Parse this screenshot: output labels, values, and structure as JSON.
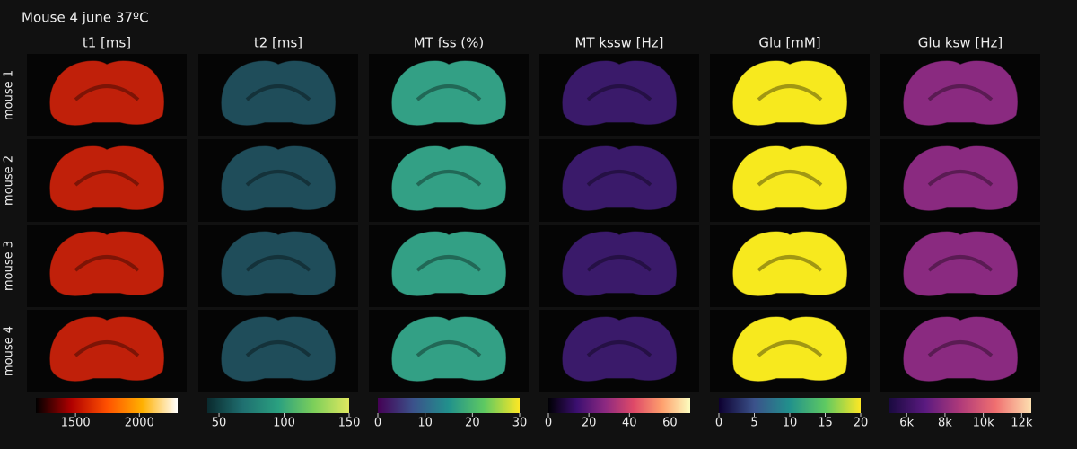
{
  "title": "Mouse 4 june 37ºC",
  "row_labels": [
    "mouse 1",
    "mouse 2",
    "mouse 3",
    "mouse 4"
  ],
  "columns": [
    {
      "title": "t1 [ms]",
      "image_color": "#c0200a",
      "colorscale": [
        "#000000",
        "#b00000",
        "#ff5000",
        "#ffb000",
        "#ffffff"
      ],
      "lim": [
        1190,
        2300
      ],
      "ticks": [
        1500,
        2000
      ]
    },
    {
      "title": "t2 [ms]",
      "image_color": "#1f4d5a",
      "colorscale": [
        "#0a2a2e",
        "#1f6f70",
        "#2aa080",
        "#7ccf5a",
        "#e0e860"
      ],
      "lim": [
        41,
        150
      ],
      "ticks": [
        50,
        100,
        150
      ]
    },
    {
      "title": "MT fss (%)",
      "image_color": "#33a085",
      "colorscale": [
        "#440154",
        "#3b528b",
        "#21918c",
        "#5ec962",
        "#fde725"
      ],
      "lim": [
        0,
        30
      ],
      "ticks": [
        0,
        10,
        20,
        30
      ]
    },
    {
      "title": "MT kssw [Hz]",
      "image_color": "#3a1a6a",
      "colorscale": [
        "#000004",
        "#3b0f70",
        "#8c2981",
        "#de4968",
        "#fe9f6d",
        "#fcfdbf"
      ],
      "lim": [
        0,
        70
      ],
      "ticks": [
        0,
        20,
        40,
        60
      ]
    },
    {
      "title": "Glu [mM]",
      "image_color": "#f7e91e",
      "colorscale": [
        "#0d0030",
        "#3b528b",
        "#21918c",
        "#5ec962",
        "#fde725"
      ],
      "lim": [
        0,
        20
      ],
      "ticks": [
        0,
        5,
        10,
        15,
        20
      ]
    },
    {
      "title": "Glu ksw [Hz]",
      "image_color": "#8a2a80",
      "colorscale": [
        "#1a0a40",
        "#5a1a80",
        "#b03a7a",
        "#f07070",
        "#fde0b0"
      ],
      "lim": [
        5100,
        12500
      ],
      "ticks": [
        {
          "value": 6000,
          "label": "6k"
        },
        {
          "value": 8000,
          "label": "8k"
        },
        {
          "value": 10000,
          "label": "10k"
        },
        {
          "value": 12000,
          "label": "12k"
        }
      ]
    }
  ]
}
